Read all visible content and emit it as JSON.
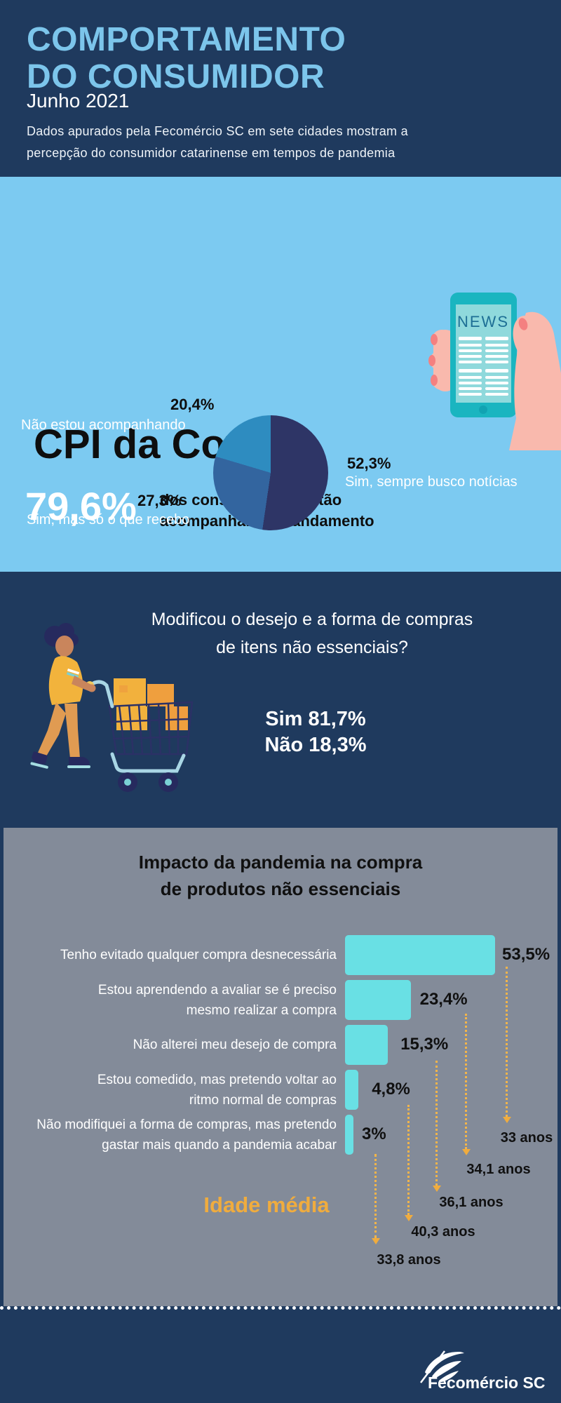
{
  "header": {
    "title_line1": "COMPORTAMENTO",
    "title_line2": "DO CONSUMIDOR",
    "date": "Junho 2021",
    "description_line1": "Dados apurados pela Fecomércio SC em sete cidades mostram a",
    "description_line2": "percepção do consumidor catarinense em tempos de pandemia"
  },
  "cpi": {
    "section_title": "CPI da Covid",
    "stat_value": "79,6%",
    "stat_caption_line1": "dos consumidores estão",
    "stat_caption_line2": "acompanhando o andamento",
    "phone_text": "NEWS"
  },
  "question": {
    "line1": "Modificou o desejo e a forma de compras",
    "line2": "de itens não essenciais?",
    "answer_yes": "Sim 81,7%",
    "answer_no": "Não 18,3%"
  },
  "impact": {
    "title_line1": "Impacto da pandemia na compra",
    "title_line2": "de produtos não essenciais",
    "age_series_title": "Idade média"
  },
  "footer": {
    "brand": "Fecomércio SC"
  },
  "colors": {
    "navy": "#1f3a5e",
    "light_blue_bg": "#7ccaf1",
    "title_blue": "#7cc5eb",
    "gray_panel": "#838b99",
    "bar_turquoise": "#69e0e4",
    "accent_orange": "#f0ac3e",
    "pie_dark_navy": "#2e3566",
    "pie_mid_blue": "#33659f",
    "pie_light_blue": "#2e8cc0"
  },
  "chart_data": [
    {
      "type": "pie",
      "title": "CPI da Covid — acompanhamento de notícias",
      "slices": [
        {
          "label": "Sim, sempre busco notícias",
          "value": 52.3,
          "display": "52,3%",
          "color": "#2e3566"
        },
        {
          "label": "Sim, mas só o que recebo",
          "value": 27.3,
          "display": "27,3%",
          "color": "#33659f"
        },
        {
          "label": "Não estou acompanhando",
          "value": 20.4,
          "display": "20,4%",
          "color": "#2e8cc0"
        }
      ],
      "start_angle_deg": 0,
      "direction": "clockwise",
      "legend_position": "around"
    },
    {
      "type": "bar",
      "orientation": "horizontal",
      "title": "Impacto da pandemia na compra de produtos não essenciais",
      "bar_color": "#69e0e4",
      "categories": [
        "Tenho evitado qualquer compra desnecessária",
        "Estou aprendendo a avaliar se é preciso mesmo realizar a compra",
        "Não alterei meu desejo de compra",
        "Estou comedido, mas pretendo voltar ao ritmo normal de compras",
        "Não modifiquei a forma de compras, mas pretendo gastar mais quando a pandemia acabar"
      ],
      "values": [
        53.5,
        23.4,
        15.3,
        4.8,
        3
      ],
      "xlim": [
        0,
        60
      ],
      "annotation_series_name": "Idade média",
      "annotation_values": [
        33,
        34.1,
        36.1,
        40.3,
        33.8
      ],
      "rows": [
        {
          "label_lines": [
            "Tenho evitado qualquer compra desnecessária"
          ],
          "value": 53.5,
          "display": "53,5%",
          "age": 33,
          "age_label": "33 anos"
        },
        {
          "label_lines": [
            "Estou aprendendo a avaliar se é preciso",
            "mesmo realizar a compra"
          ],
          "value": 23.4,
          "display": "23,4%",
          "age": 34.1,
          "age_label": "34,1 anos"
        },
        {
          "label_lines": [
            "Não alterei meu desejo de compra"
          ],
          "value": 15.3,
          "display": "15,3%",
          "age": 36.1,
          "age_label": "36,1 anos"
        },
        {
          "label_lines": [
            "Estou comedido, mas pretendo voltar ao",
            "ritmo normal de compras"
          ],
          "value": 4.8,
          "display": "4,8%",
          "age": 40.3,
          "age_label": "40,3 anos"
        },
        {
          "label_lines": [
            "Não modifiquei a forma de compras, mas pretendo",
            "gastar mais quando a pandemia acabar"
          ],
          "value": 3,
          "display": "3%",
          "age": 33.8,
          "age_label": "33,8 anos"
        }
      ]
    }
  ]
}
